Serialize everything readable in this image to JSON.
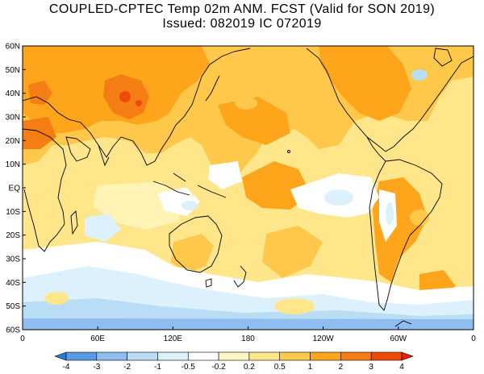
{
  "title": {
    "line1": "COUPLED-CPTEC Temp 02m ANM. FCST  (Valid for SON 2019)",
    "line2": "Issued:  082019 IC 072019"
  },
  "lat_labels": [
    "60N",
    "50N",
    "40N",
    "30N",
    "20N",
    "10N",
    "EQ",
    "10S",
    "20S",
    "30S",
    "40S",
    "50S",
    "60S"
  ],
  "lon_labels": [
    "0",
    "60E",
    "120E",
    "180",
    "120W",
    "60W",
    "0"
  ],
  "colorbar": {
    "levels": [
      "-4",
      "-3",
      "-2",
      "-1",
      "-0.5",
      "-0.2",
      "0.2",
      "0.5",
      "1",
      "2",
      "3",
      "4"
    ],
    "colors": [
      "#2e78d6",
      "#5a9ae4",
      "#8fbdf0",
      "#b8ddf5",
      "#dcf1fb",
      "#ffffff",
      "#fff6c4",
      "#ffe68a",
      "#ffc84a",
      "#ffa51c",
      "#f57e14",
      "#f04a0a",
      "#e8200a"
    ]
  },
  "palette": {
    "white": "#ffffff",
    "light_yellow": "#fff3b5",
    "yellow": "#ffe68a",
    "light_orange": "#ffc84a",
    "orange": "#ffa51c",
    "dark_orange": "#f57e14",
    "red_orange": "#f04a0a",
    "light_blue": "#dcf1fb",
    "blue": "#b8ddf5",
    "mid_blue": "#8fbdf0",
    "coast": "#000000"
  }
}
